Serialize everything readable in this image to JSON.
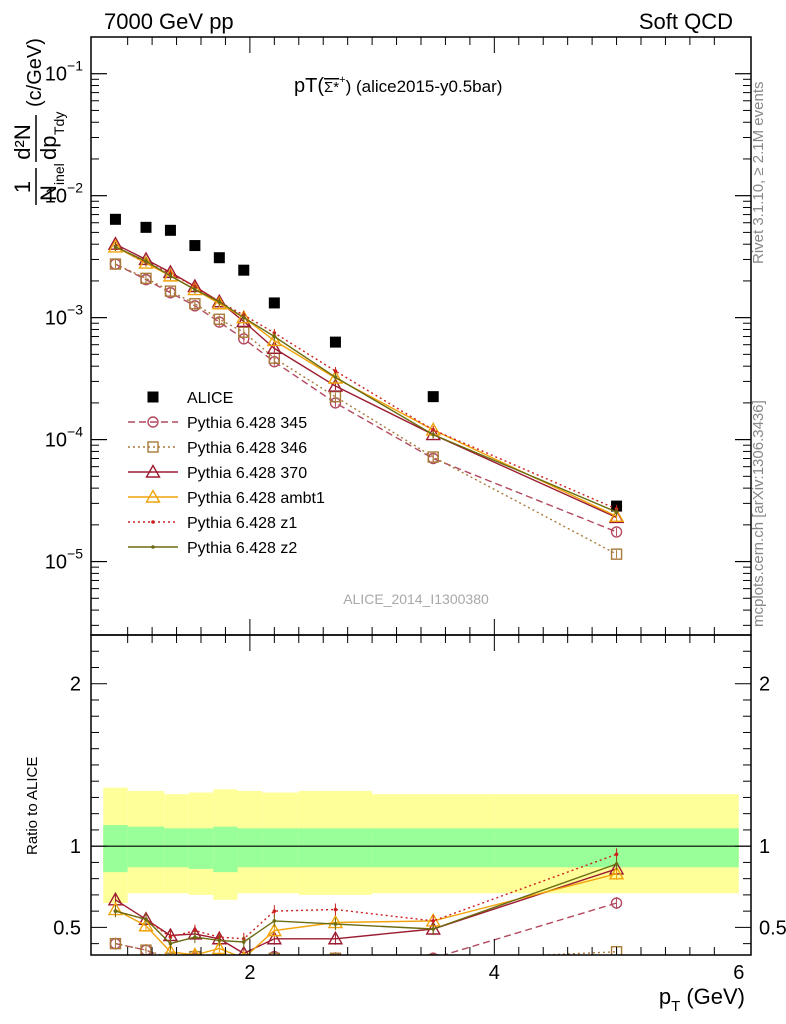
{
  "header": {
    "left": "7000 GeV pp",
    "right": "Soft QCD"
  },
  "side_labels": {
    "rivet": "Rivet 3.1.10, ≥ 2.1M events",
    "mcplots": "mcplots.cern.ch [arXiv:1306.3436]"
  },
  "chart_data": [
    {
      "type": "line",
      "panel": "main",
      "title": "pT(Σ*⁺) (alice2015-y0.5bar)",
      "title_main": "pT(",
      "title_sym": "Σ*",
      "title_sup": "+",
      "title_tail": ") (alice2015-y0.5bar)",
      "ylabel": "1/N_inel d²N/dp_Tdy (c/GeV)",
      "ylabel_parts": {
        "one": "1",
        "num": "d²N",
        "n": "N",
        "inel": "inel",
        "dp": "dp",
        "tdy": "Tdy",
        "unit": "(c/GeV)"
      },
      "yscale": "log",
      "ylim": [
        2.5e-06,
        0.2
      ],
      "xlim": [
        0.7,
        6.1
      ],
      "yticks": [
        {
          "value": 1e-05,
          "base": "10",
          "exp": "−5"
        },
        {
          "value": 0.0001,
          "base": "10",
          "exp": "−4"
        },
        {
          "value": 0.001,
          "base": "10",
          "exp": "−3"
        },
        {
          "value": 0.01,
          "base": "10",
          "exp": "−2"
        },
        {
          "value": 0.1,
          "base": "10",
          "exp": "−1"
        }
      ],
      "watermark": "ALICE_2014_I1300380",
      "legend_position": "lower-left",
      "series": [
        {
          "name": "ALICE",
          "color": "#000000",
          "marker": "square-filled",
          "dash": "none",
          "x": [
            0.9,
            1.15,
            1.35,
            1.55,
            1.75,
            1.95,
            2.2,
            2.7,
            3.5,
            5.0
          ],
          "y": [
            0.0064,
            0.0055,
            0.0052,
            0.0039,
            0.0031,
            0.00245,
            0.00132,
            0.00063,
            0.000225,
            2.85e-05
          ]
        },
        {
          "name": "Pythia 6.428 345",
          "color": "#b2495e",
          "marker": "circle-open",
          "dash": "7,4",
          "x": [
            0.9,
            1.15,
            1.35,
            1.55,
            1.75,
            1.95,
            2.2,
            2.7,
            3.5,
            5.0
          ],
          "y": [
            0.00275,
            0.00205,
            0.0016,
            0.00125,
            0.00092,
            0.00067,
            0.000435,
            0.0002,
            7e-05,
            1.75e-05
          ]
        },
        {
          "name": "Pythia 6.428 346",
          "color": "#a87b3a",
          "marker": "square-open",
          "dash": "2,3",
          "x": [
            0.9,
            1.15,
            1.35,
            1.55,
            1.75,
            1.95,
            2.2,
            2.7,
            3.5,
            5.0
          ],
          "y": [
            0.00275,
            0.0021,
            0.00165,
            0.0013,
            0.00097,
            0.00076,
            0.000465,
            0.000225,
            7.2e-05,
            1.15e-05
          ]
        },
        {
          "name": "Pythia 6.428 370",
          "color": "#9b1b30",
          "marker": "triangle-open",
          "dash": "none",
          "x": [
            0.9,
            1.15,
            1.35,
            1.55,
            1.75,
            1.95,
            2.2,
            2.7,
            3.5,
            5.0
          ],
          "y": [
            0.004,
            0.003,
            0.00235,
            0.0018,
            0.00135,
            0.00093,
            0.00056,
            0.000275,
            0.00011,
            2.3e-05
          ]
        },
        {
          "name": "Pythia 6.428 ambt1",
          "color": "#f0a30a",
          "marker": "triangle-open",
          "dash": "none",
          "x": [
            0.9,
            1.15,
            1.35,
            1.55,
            1.75,
            1.95,
            2.2,
            2.7,
            3.5,
            5.0
          ],
          "y": [
            0.0038,
            0.0028,
            0.0022,
            0.0017,
            0.0013,
            0.001,
            0.00065,
            0.00032,
            0.00012,
            2.35e-05
          ]
        },
        {
          "name": "Pythia 6.428 z1",
          "color": "#cc2020",
          "marker": "dot",
          "dash": "2,3",
          "x": [
            0.9,
            1.15,
            1.35,
            1.55,
            1.75,
            1.95,
            2.2,
            2.7,
            3.5,
            5.0
          ],
          "y": [
            0.00385,
            0.00285,
            0.0023,
            0.0018,
            0.00135,
            0.00105,
            0.00075,
            0.000365,
            0.00012,
            2.7e-05
          ]
        },
        {
          "name": "Pythia 6.428 z2",
          "color": "#6b6b10",
          "marker": "dot",
          "dash": "none",
          "x": [
            0.9,
            1.15,
            1.35,
            1.55,
            1.75,
            1.95,
            2.2,
            2.7,
            3.5,
            5.0
          ],
          "y": [
            0.0038,
            0.0029,
            0.0022,
            0.0017,
            0.00135,
            0.001,
            0.0007,
            0.000325,
            0.00011,
            2.55e-05
          ]
        }
      ]
    },
    {
      "type": "line",
      "panel": "ratio",
      "ylabel": "Ratio to ALICE",
      "xlabel": "p_T (GeV)",
      "xlabel_parts": {
        "p": "p",
        "sub": "T",
        "unit": "(GeV)"
      },
      "ylim": [
        0.33,
        2.3
      ],
      "xlim": [
        0.7,
        6.1
      ],
      "xticks": [
        {
          "value": 2,
          "label": "2"
        },
        {
          "value": 4,
          "label": "4"
        },
        {
          "value": 6,
          "label": "6"
        }
      ],
      "yticks": [
        {
          "value": 0.5,
          "label": "0.5"
        },
        {
          "value": 1,
          "label": "1"
        },
        {
          "value": 2,
          "label": "2"
        }
      ],
      "reference_line": 1,
      "bands": {
        "bins": [
          0.8,
          1.0,
          1.3,
          1.5,
          1.7,
          1.9,
          2.1,
          2.4,
          3.0,
          4.0,
          6.0
        ],
        "outer": {
          "color": "#ffff99",
          "lo": [
            0.65,
            0.71,
            0.71,
            0.7,
            0.67,
            0.71,
            0.71,
            0.7,
            0.71,
            0.71
          ],
          "hi": [
            1.36,
            1.34,
            1.32,
            1.33,
            1.35,
            1.34,
            1.33,
            1.34,
            1.32,
            1.32
          ]
        },
        "inner": {
          "color": "#99ff99",
          "lo": [
            0.84,
            0.87,
            0.87,
            0.86,
            0.84,
            0.87,
            0.87,
            0.87,
            0.87,
            0.87
          ],
          "hi": [
            1.13,
            1.12,
            1.11,
            1.11,
            1.12,
            1.11,
            1.11,
            1.11,
            1.11,
            1.11
          ]
        }
      },
      "series": [
        {
          "name": "Pythia 6.428 345",
          "x": [
            0.9,
            1.15,
            1.35,
            1.55,
            1.75,
            1.95,
            2.2,
            2.7,
            3.5,
            5.0
          ],
          "y": [
            0.4,
            0.36,
            0.3,
            0.31,
            0.29,
            0.27,
            0.32,
            0.31,
            0.31,
            0.65
          ]
        },
        {
          "name": "Pythia 6.428 346",
          "x": [
            0.9,
            1.15,
            1.35,
            1.55,
            1.75,
            1.95,
            2.2,
            2.7,
            3.5,
            5.0
          ],
          "y": [
            0.4,
            0.36,
            0.31,
            0.32,
            0.3,
            0.3,
            0.31,
            0.31,
            0.3,
            0.35
          ]
        },
        {
          "name": "Pythia 6.428 370",
          "x": [
            0.9,
            1.15,
            1.35,
            1.55,
            1.75,
            1.95,
            2.2,
            2.7,
            3.5,
            5.0
          ],
          "y": [
            0.67,
            0.55,
            0.45,
            0.46,
            0.43,
            0.34,
            0.43,
            0.43,
            0.49,
            0.86
          ]
        },
        {
          "name": "Pythia 6.428 ambt1",
          "x": [
            0.9,
            1.15,
            1.35,
            1.55,
            1.75,
            1.95,
            2.2,
            2.7,
            3.5,
            5.0
          ],
          "y": [
            0.61,
            0.51,
            0.35,
            0.33,
            0.37,
            0.31,
            0.48,
            0.53,
            0.54,
            0.83
          ]
        },
        {
          "name": "Pythia 6.428 z1",
          "x": [
            0.9,
            1.15,
            1.35,
            1.55,
            1.75,
            1.95,
            2.2,
            2.7,
            3.5,
            5.0
          ],
          "y": [
            0.6,
            0.55,
            0.44,
            0.48,
            0.44,
            0.43,
            0.6,
            0.61,
            0.54,
            0.95
          ]
        },
        {
          "name": "Pythia 6.428 z2",
          "x": [
            0.9,
            1.15,
            1.35,
            1.55,
            1.75,
            1.95,
            2.2,
            2.7,
            3.5,
            5.0
          ],
          "y": [
            0.6,
            0.55,
            0.4,
            0.44,
            0.42,
            0.41,
            0.54,
            0.52,
            0.49,
            0.89
          ]
        }
      ]
    }
  ]
}
